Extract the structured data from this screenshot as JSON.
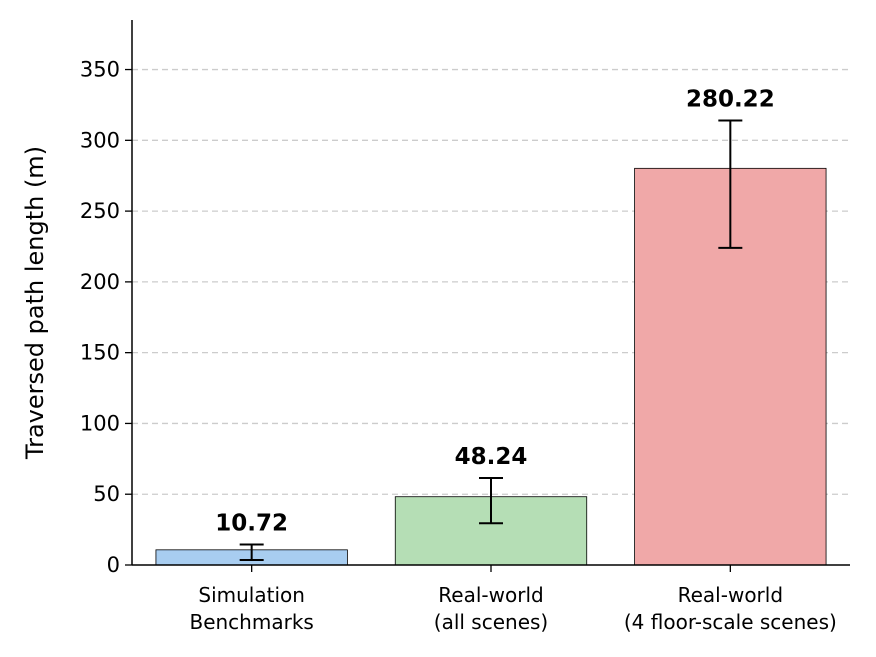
{
  "chart_data": {
    "type": "bar",
    "categories": [
      [
        "Simulation",
        "Benchmarks"
      ],
      [
        "Real-world",
        "(all scenes)"
      ],
      [
        "Real-world",
        "(4 floor-scale scenes)"
      ]
    ],
    "values": [
      10.72,
      48.24,
      280.22
    ],
    "error_low": [
      3.5,
      29.5,
      224.0
    ],
    "error_high": [
      14.5,
      61.5,
      314.0
    ],
    "value_labels": [
      "10.72",
      "48.24",
      "280.22"
    ],
    "bar_colors": [
      "#a8cdf0",
      "#b5deb5",
      "#f0a8a8"
    ],
    "title": "",
    "xlabel": "",
    "ylabel": "Traversed path length (m)",
    "ylim": [
      0,
      385
    ],
    "yticks": [
      0,
      50,
      100,
      150,
      200,
      250,
      300,
      350
    ],
    "grid": "horizontal dashed",
    "legend": "none"
  }
}
